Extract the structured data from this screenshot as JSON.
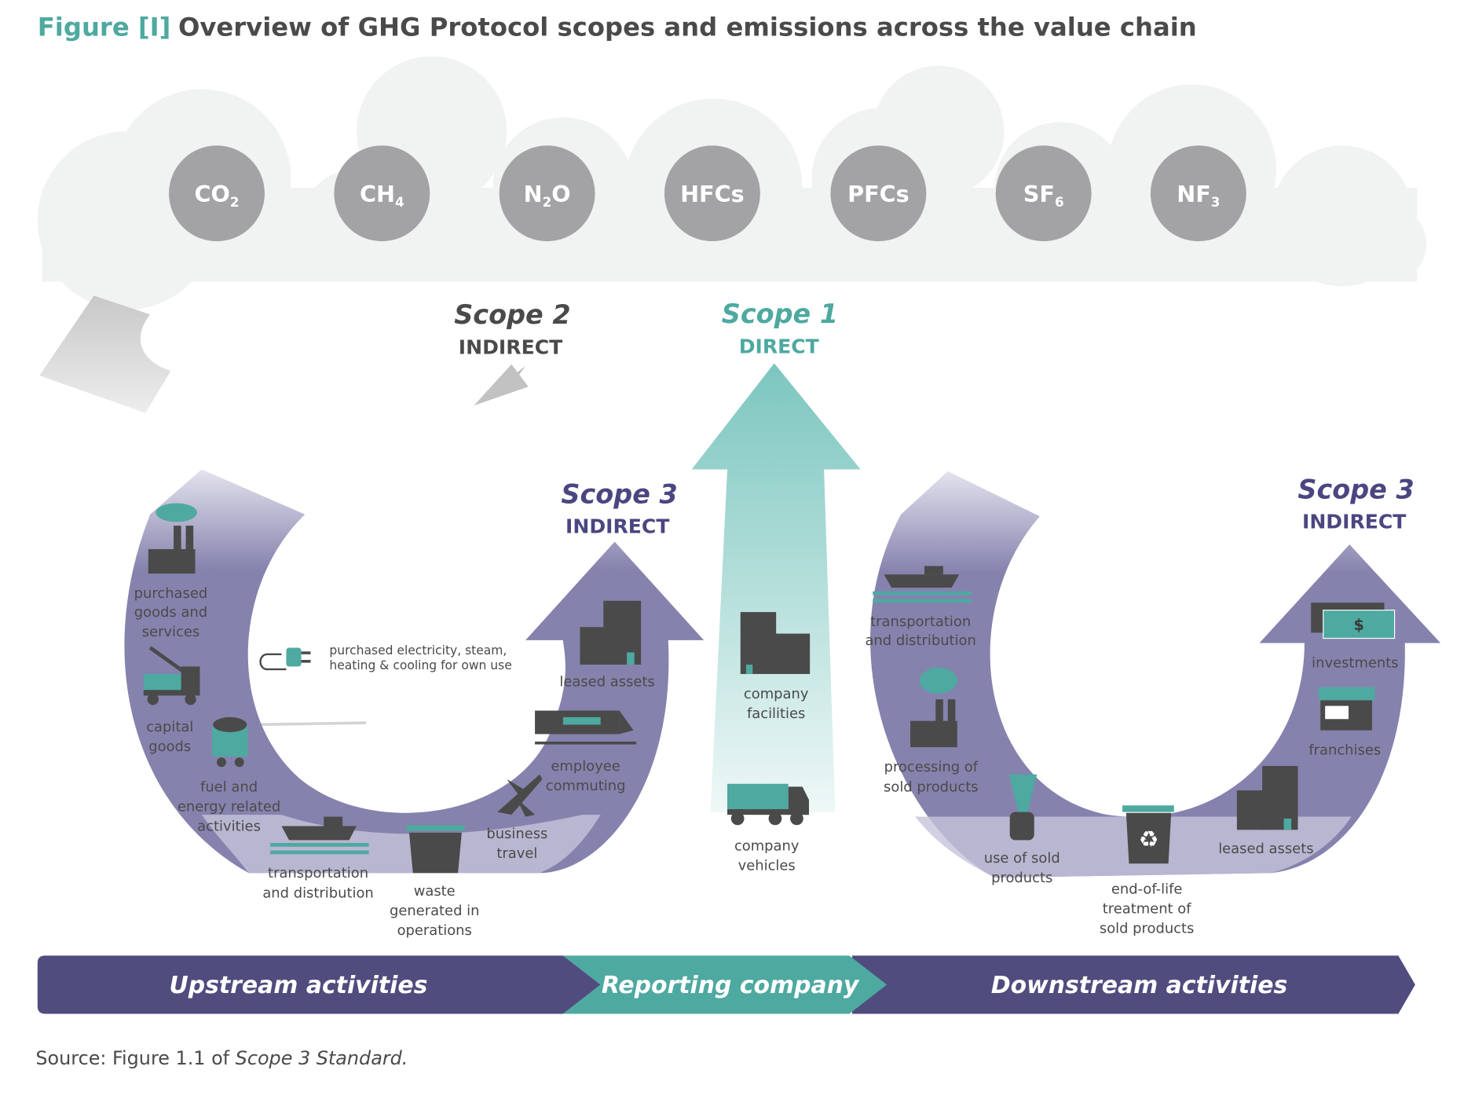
{
  "title": {
    "prefix": "Figure [I]",
    "text": "Overview of GHG Protocol scopes and emissions across the value chain"
  },
  "gases": [
    {
      "base": "CO",
      "sub": "2",
      "after": ""
    },
    {
      "base": "CH",
      "sub": "4",
      "after": ""
    },
    {
      "base": "N",
      "sub": "2",
      "after": "O"
    },
    {
      "base": "HFCs",
      "sub": "",
      "after": ""
    },
    {
      "base": "PFCs",
      "sub": "",
      "after": ""
    },
    {
      "base": "SF",
      "sub": "6",
      "after": ""
    },
    {
      "base": "NF",
      "sub": "3",
      "after": ""
    }
  ],
  "scope2": {
    "name": "Scope 2",
    "kind": "INDIRECT",
    "item": [
      "purchased electricity, steam,",
      "heating & cooling for own use"
    ]
  },
  "scope1": {
    "name": "Scope 1",
    "kind": "DIRECT",
    "facilities": [
      "company",
      "facilities"
    ],
    "vehicles": [
      "company",
      "vehicles"
    ]
  },
  "scope3_up": {
    "name": "Scope 3",
    "kind": "INDIRECT",
    "items": {
      "purchased_goods": [
        "purchased",
        "goods and",
        "services"
      ],
      "capital_goods": [
        "capital",
        "goods"
      ],
      "fuel_energy": [
        "fuel and",
        "energy related",
        "activities"
      ],
      "transport": [
        "transportation",
        "and distribution"
      ],
      "waste": [
        "waste",
        "generated in",
        "operations"
      ],
      "business_travel": [
        "business",
        "travel"
      ],
      "commuting": [
        "employee",
        "commuting"
      ],
      "leased": [
        "leased assets"
      ]
    }
  },
  "scope3_down": {
    "name": "Scope 3",
    "kind": "INDIRECT",
    "items": {
      "transport": [
        "transportation",
        "and distribution"
      ],
      "processing": [
        "processing of",
        "sold products"
      ],
      "use": [
        "use of sold",
        "products"
      ],
      "eol": [
        "end-of-life",
        "treatment of",
        "sold products"
      ],
      "leased": [
        "leased assets"
      ],
      "franchises": [
        "franchises"
      ],
      "investments": [
        "investments"
      ],
      "dollar": "$"
    }
  },
  "band": {
    "upstream": "Upstream activities",
    "reporting": "Reporting company",
    "downstream": "Downstream activities"
  },
  "source": {
    "prefix": "Source: Figure 1.1 of ",
    "italic": "Scope 3 Standard."
  },
  "colors": {
    "teal": "#4ea9a0",
    "purple": "#504c7e",
    "scope3": "#8582ad",
    "gas": "#a3a3a6",
    "cloud": "#f1f2f2",
    "icon": "#4a4a4a"
  }
}
